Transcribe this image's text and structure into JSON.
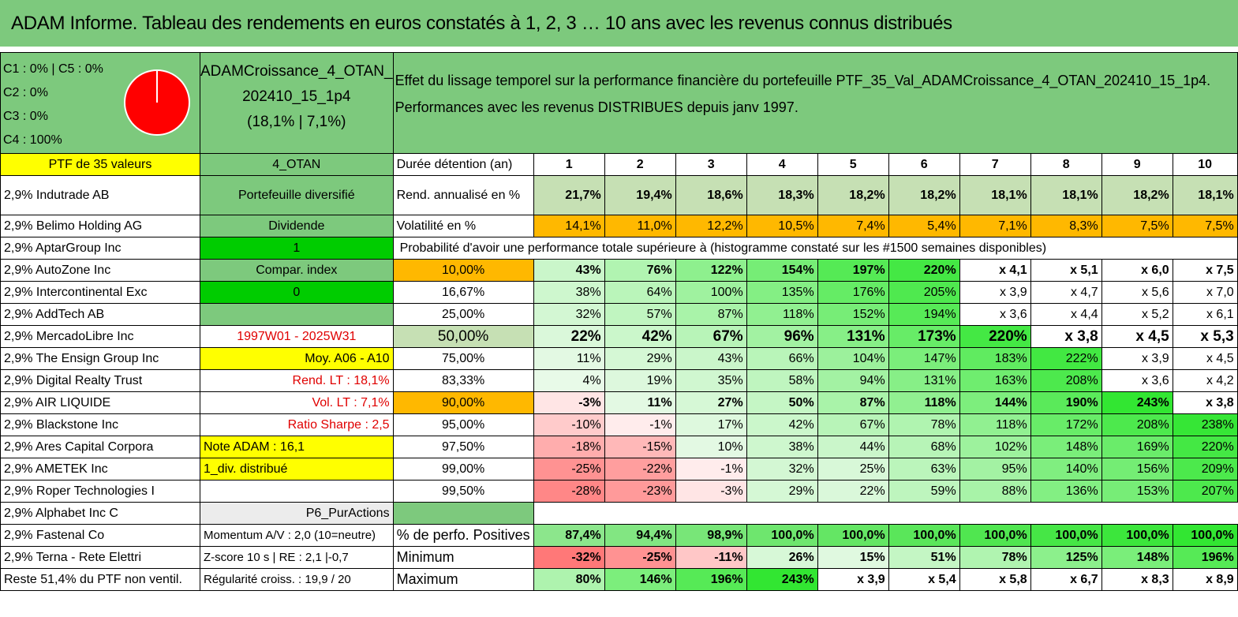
{
  "title": "ADAM Informe. Tableau des rendements en euros constatés à 1, 2, 3 … 10 ans avec les revenus connus distribués",
  "colors": {
    "green": "#7dc97d",
    "yellow": "#ffff00",
    "orange": "#ffb800",
    "pie_red": "#ff0000"
  },
  "pie": {
    "legend": [
      "C1 : 0% | C5 : 0%",
      "C2 : 0%",
      "C3 : 0%",
      "C4 : 100%"
    ],
    "values": [
      0,
      0,
      0,
      100,
      0
    ]
  },
  "portfolio": {
    "name_line1": "ADAMCroissance_4_OTAN_",
    "name_line2": "202410_15_1p4",
    "name_line3": "(18,1% | 7,1%)"
  },
  "effect_text": {
    "line1": "Effet du lissage temporel sur la performance financière du portefeuille PTF_35_Val_ADAMCroissance_4_OTAN_202410_15_1p4.",
    "line2": "Performances avec les revenus DISTRIBUES depuis janv 1997."
  },
  "header": {
    "col1": "PTF de 35 valeurs",
    "col2": "4_OTAN",
    "col3": "Durée détention (an)",
    "years": [
      "1",
      "2",
      "3",
      "4",
      "5",
      "6",
      "7",
      "8",
      "9",
      "10"
    ]
  },
  "holdings": [
    "2,9% Indutrade AB",
    "2,9% Belimo Holding AG",
    "2,9% AptarGroup Inc",
    "2,9% AutoZone Inc",
    "2,9% Intercontinental Exc",
    "2,9% AddTech AB",
    "2,9% MercadoLibre Inc",
    "2,9% The Ensign Group Inc",
    "2,9% Digital Realty Trust",
    "2,9% AIR LIQUIDE",
    "2,9% Blackstone Inc",
    "2,9% Ares Capital Corpora",
    "2,9% AMETEK Inc",
    "2,9% Roper Technologies I",
    "2,9% Alphabet Inc C",
    "2,9% Fastenal Co",
    "2,9% Terna - Rete Elettri",
    "Reste 51,4% du PTF non ventil."
  ],
  "info": [
    "Portefeuille diversifié",
    "Dividende",
    "1",
    "Compar. index",
    "0",
    "",
    "1997W01 - 2025W31",
    "Moy. A06 - A10",
    "Rend. LT : 18,1%",
    "Vol. LT : 7,1%",
    "Ratio Sharpe : 2,5",
    "Note ADAM : 16,1",
    "1_div. distribué",
    "",
    "P6_PurActions",
    "Momentum A/V : 2,0 (10=neutre)",
    "Z-score 10 s | RE : 2,1 |-0,7",
    "Régularité croiss. : 19,9 / 20"
  ],
  "rend": {
    "label": "Rend. annualisé en %",
    "values": [
      "21,7%",
      "19,4%",
      "18,6%",
      "18,3%",
      "18,2%",
      "18,2%",
      "18,1%",
      "18,1%",
      "18,2%",
      "18,1%"
    ]
  },
  "vol": {
    "label": "Volatilité en %",
    "values": [
      "14,1%",
      "11,0%",
      "12,2%",
      "10,5%",
      "7,4%",
      "5,4%",
      "7,1%",
      "8,3%",
      "7,5%",
      "7,5%"
    ]
  },
  "prob_title": "Probabilité d'avoir une performance totale supérieure à (histogramme constaté sur les #1500 semaines disponibles)",
  "prob_rows": [
    {
      "p": "10,00%",
      "v": [
        "43%",
        "76%",
        "122%",
        "154%",
        "197%",
        "220%",
        "x 4,1",
        "x 5,1",
        "x 6,0",
        "x 7,5"
      ]
    },
    {
      "p": "16,67%",
      "v": [
        "38%",
        "64%",
        "100%",
        "135%",
        "176%",
        "205%",
        "x 3,9",
        "x 4,7",
        "x 5,6",
        "x 7,0"
      ]
    },
    {
      "p": "25,00%",
      "v": [
        "32%",
        "57%",
        "87%",
        "118%",
        "152%",
        "194%",
        "x 3,6",
        "x 4,4",
        "x 5,2",
        "x 6,1"
      ]
    },
    {
      "p": "50,00%",
      "v": [
        "22%",
        "42%",
        "67%",
        "96%",
        "131%",
        "173%",
        "220%",
        "x 3,8",
        "x 4,5",
        "x 5,3"
      ]
    },
    {
      "p": "75,00%",
      "v": [
        "11%",
        "29%",
        "43%",
        "66%",
        "104%",
        "147%",
        "183%",
        "222%",
        "x 3,9",
        "x 4,5"
      ]
    },
    {
      "p": "83,33%",
      "v": [
        "4%",
        "19%",
        "35%",
        "58%",
        "94%",
        "131%",
        "163%",
        "208%",
        "x 3,6",
        "x 4,2"
      ]
    },
    {
      "p": "90,00%",
      "v": [
        "-3%",
        "11%",
        "27%",
        "50%",
        "87%",
        "118%",
        "144%",
        "190%",
        "243%",
        "x 3,8"
      ]
    },
    {
      "p": "95,00%",
      "v": [
        "-10%",
        "-1%",
        "17%",
        "42%",
        "67%",
        "78%",
        "118%",
        "172%",
        "208%",
        "238%"
      ]
    },
    {
      "p": "97,50%",
      "v": [
        "-18%",
        "-15%",
        "10%",
        "38%",
        "44%",
        "68%",
        "102%",
        "148%",
        "169%",
        "220%"
      ]
    },
    {
      "p": "99,00%",
      "v": [
        "-25%",
        "-22%",
        "-1%",
        "32%",
        "25%",
        "63%",
        "95%",
        "140%",
        "156%",
        "209%"
      ]
    },
    {
      "p": "99,50%",
      "v": [
        "-28%",
        "-23%",
        "-3%",
        "29%",
        "22%",
        "59%",
        "88%",
        "136%",
        "153%",
        "207%"
      ]
    }
  ],
  "stats": [
    {
      "label": "% de perfo. Positives",
      "v": [
        "87,4%",
        "94,4%",
        "98,9%",
        "100,0%",
        "100,0%",
        "100,0%",
        "100,0%",
        "100,0%",
        "100,0%",
        "100,0%"
      ]
    },
    {
      "label": "Minimum",
      "v": [
        "-32%",
        "-25%",
        "-11%",
        "26%",
        "15%",
        "51%",
        "78%",
        "125%",
        "148%",
        "196%"
      ]
    },
    {
      "label": "Maximum",
      "v": [
        "80%",
        "146%",
        "196%",
        "243%",
        "x 3,9",
        "x 5,4",
        "x 5,8",
        "x 6,7",
        "x 8,3",
        "x 8,9"
      ]
    }
  ]
}
